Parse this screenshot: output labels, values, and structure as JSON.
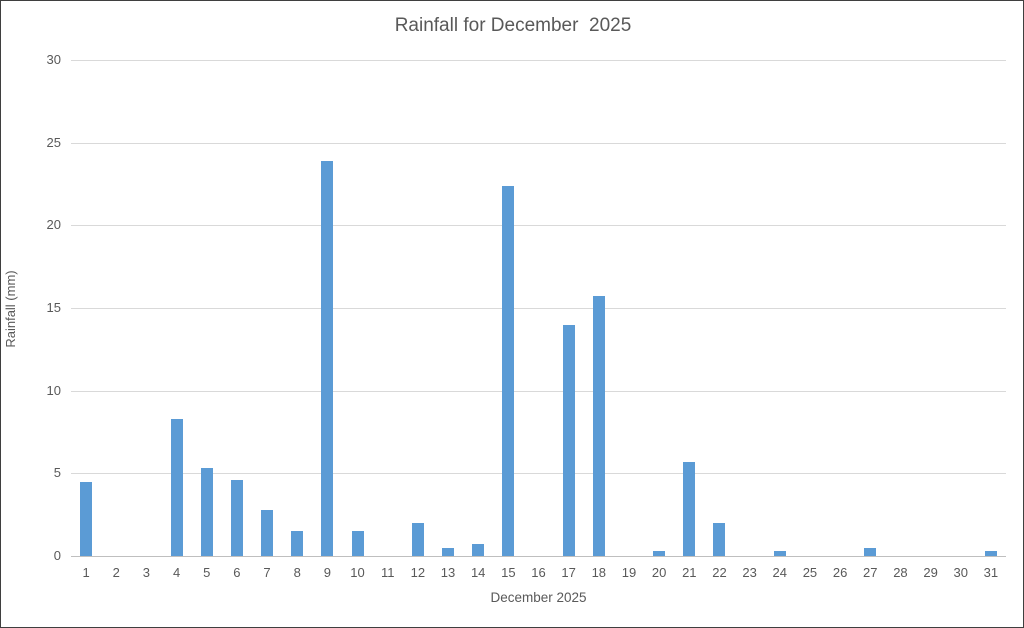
{
  "chart_data": {
    "type": "bar",
    "title": "Rainfall for December  2025",
    "xlabel": "December 2025",
    "ylabel": "Rainfall (mm)",
    "categories": [
      "1",
      "2",
      "3",
      "4",
      "5",
      "6",
      "7",
      "8",
      "9",
      "10",
      "11",
      "12",
      "13",
      "14",
      "15",
      "16",
      "17",
      "18",
      "19",
      "20",
      "21",
      "22",
      "23",
      "24",
      "25",
      "26",
      "27",
      "28",
      "29",
      "30",
      "31"
    ],
    "values": [
      4.5,
      0,
      0,
      8.3,
      5.3,
      4.6,
      2.8,
      1.5,
      23.9,
      1.5,
      0,
      2.0,
      0.5,
      0.7,
      22.4,
      0,
      14.0,
      15.7,
      0,
      0.3,
      5.7,
      2.0,
      0,
      0.3,
      0,
      0,
      0.5,
      0,
      0,
      0,
      0.3
    ],
    "ylim": [
      0,
      30
    ],
    "yticks": [
      0,
      5,
      10,
      15,
      20,
      25,
      30
    ],
    "grid": true,
    "legend": "none",
    "bar_color": "#5b9bd5",
    "gridline_color": "#d9d9d9",
    "axis_line_color": "#bfbfbf",
    "text_color": "#595959"
  }
}
